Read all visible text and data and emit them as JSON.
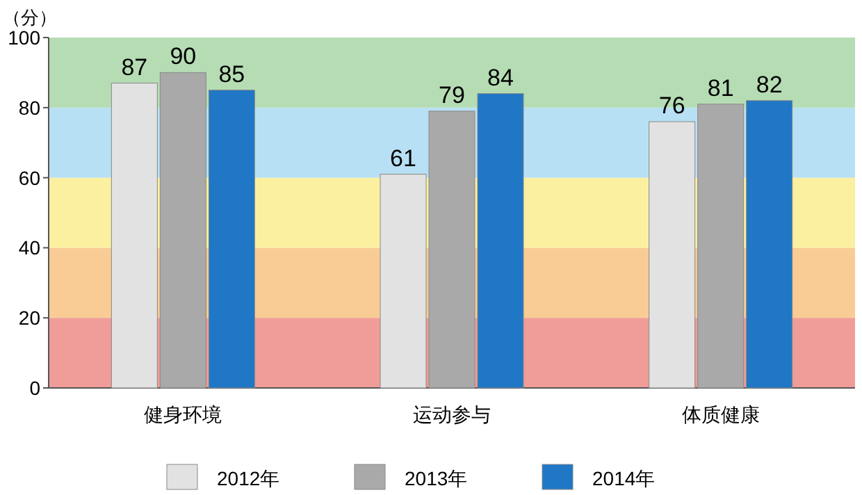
{
  "chart_data": {
    "type": "bar",
    "ylabel": "（分）",
    "categories": [
      "健身环境",
      "运动参与",
      "体质健康"
    ],
    "series": [
      {
        "name": "2012年",
        "color": "#e2e2e2",
        "values": [
          87,
          61,
          76
        ]
      },
      {
        "name": "2013年",
        "color": "#a9a9a9",
        "values": [
          90,
          79,
          81
        ]
      },
      {
        "name": "2014年",
        "color": "#1f77c6",
        "values": [
          85,
          84,
          82
        ]
      }
    ],
    "ylim": [
      0,
      100
    ],
    "yticks": [
      0,
      20,
      40,
      60,
      80,
      100
    ],
    "data_labels": true,
    "legend": "bottom",
    "bands": [
      {
        "axis": "y",
        "from": 0,
        "to": 20,
        "color": "#f09c98"
      },
      {
        "axis": "y",
        "from": 20,
        "to": 40,
        "color": "#f8cc94"
      },
      {
        "axis": "y",
        "from": 40,
        "to": 60,
        "color": "#fbf0a0"
      },
      {
        "axis": "y",
        "from": 60,
        "to": 80,
        "color": "#b8e0f4"
      },
      {
        "axis": "y",
        "from": 80,
        "to": 100,
        "color": "#b6dcb4"
      }
    ]
  }
}
